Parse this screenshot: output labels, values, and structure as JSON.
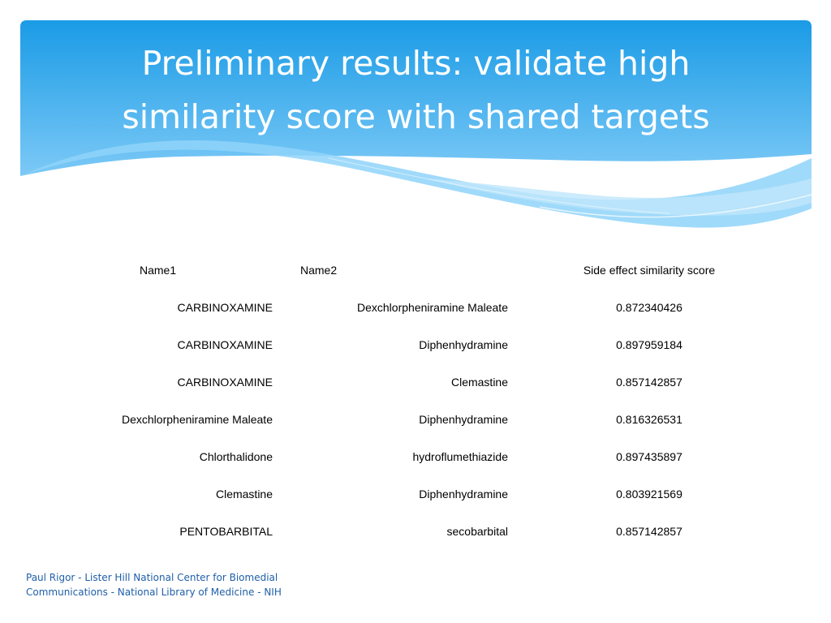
{
  "slide": {
    "title_line1": "Preliminary results: validate high",
    "title_line2": "similarity score with shared targets",
    "colors": {
      "banner_top": "#1a9be6",
      "banner_bottom": "#8fd3f9",
      "footer_text": "#1f5fa8"
    }
  },
  "table": {
    "headers": [
      "Name1",
      "Name2",
      "Side effect similarity score"
    ],
    "rows": [
      [
        "CARBINOXAMINE",
        "Dexchlorpheniramine Maleate",
        "0.872340426"
      ],
      [
        "CARBINOXAMINE",
        "Diphenhydramine",
        "0.897959184"
      ],
      [
        "CARBINOXAMINE",
        "Clemastine",
        "0.857142857"
      ],
      [
        "Dexchlorpheniramine Maleate",
        "Diphenhydramine",
        "0.816326531"
      ],
      [
        "Chlorthalidone",
        "hydroflumethiazide",
        "0.897435897"
      ],
      [
        "Clemastine",
        "Diphenhydramine",
        "0.803921569"
      ],
      [
        "PENTOBARBITAL",
        "secobarbital",
        "0.857142857"
      ]
    ]
  },
  "footer": {
    "line1": "Paul Rigor - Lister Hill National Center for Biomedial",
    "line2": "Communications - National Library of Medicine - NIH"
  }
}
